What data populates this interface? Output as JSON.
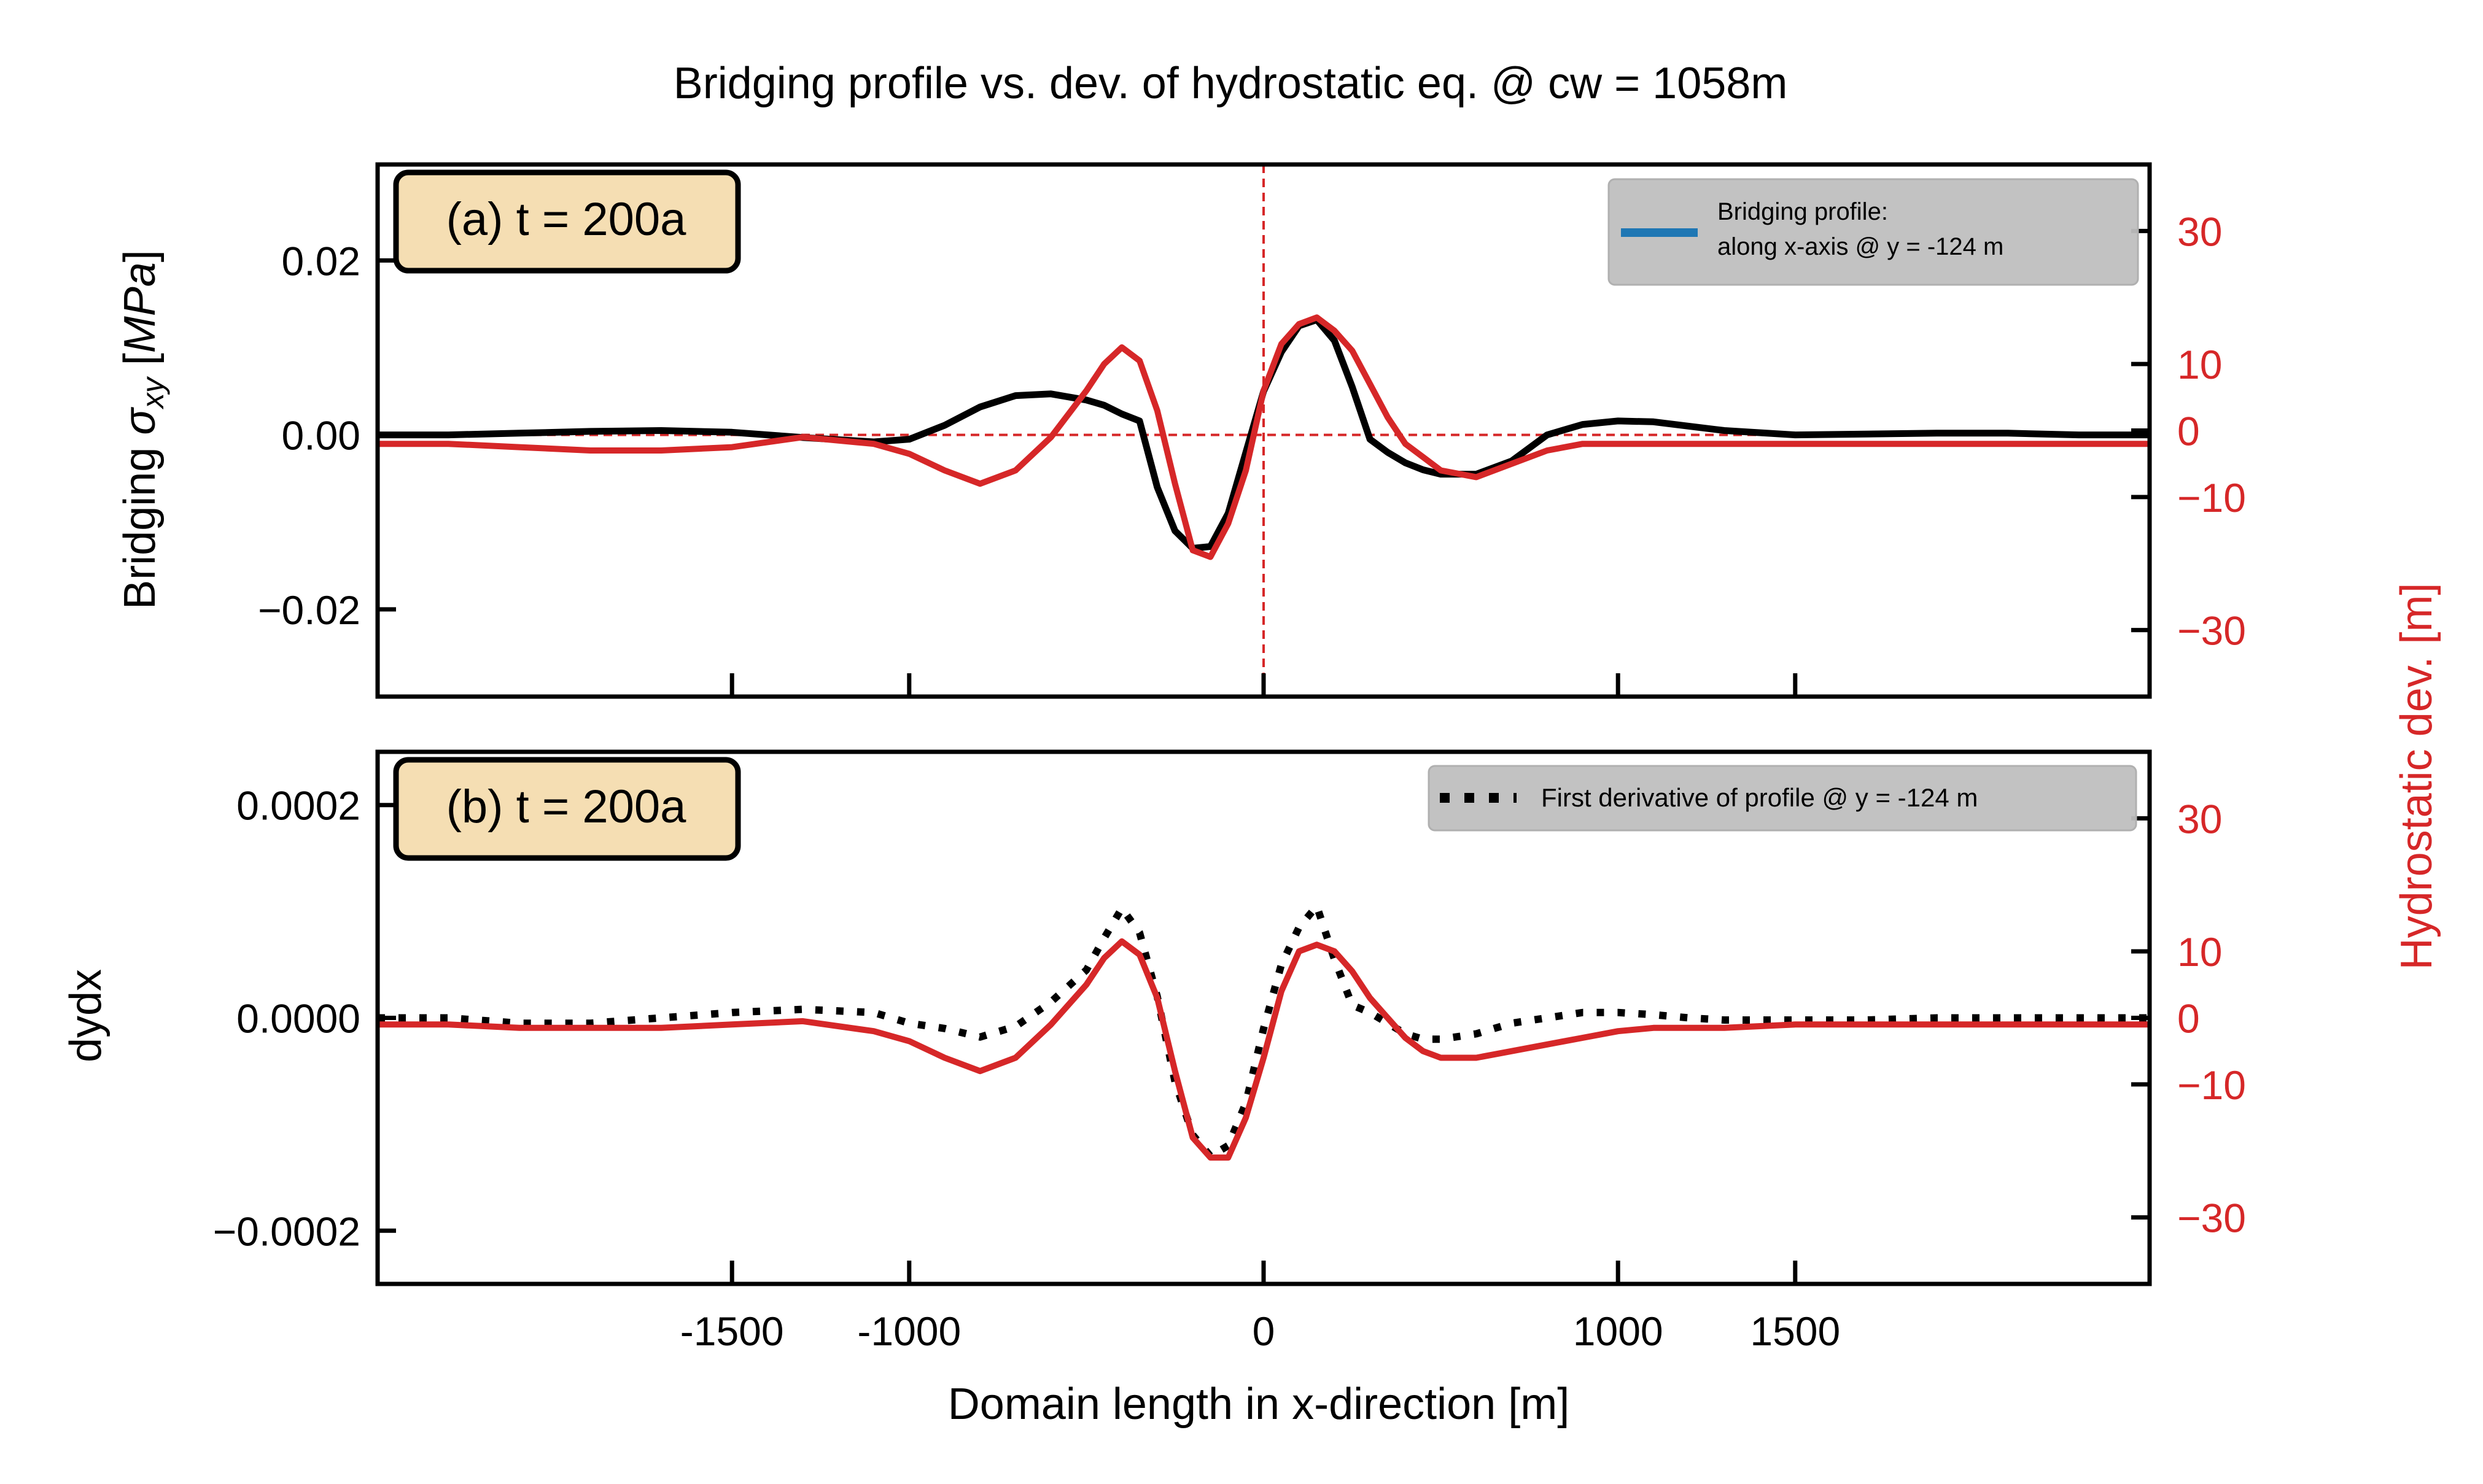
{
  "figure_title": "Bridging profile vs. dev. of hydrostatic eq. @ cw = 1058m",
  "x_axis_label": "Domain length in x-direction [m]",
  "right_axis_label": "Hydrostatic dev. [m]",
  "colors": {
    "black": "#000000",
    "red": "#d62728",
    "blue": "#1f77b4",
    "badge": "#f5deb3",
    "legend_bg": "#bfbfbf"
  },
  "chart_data": [
    {
      "type": "line",
      "panel": "(a) t = 200a",
      "xlabel": "Domain length in x-direction [m]",
      "ylabel": "Bridging σxy [MPa]",
      "ylabel_parts": {
        "pre": "Bridging ",
        "sym": "σ",
        "sub": "xy",
        "post": " [",
        "unit": "MPa",
        "end": "]"
      },
      "xlim": [
        -2500,
        2500
      ],
      "ylim": [
        -0.03,
        0.031
      ],
      "y_ticks": [
        0.02,
        0.0,
        -0.02
      ],
      "y_tick_labels": [
        "0.02",
        "0.00",
        "−0.02"
      ],
      "x_ticks": [
        -1500,
        -1000,
        0,
        1000,
        1500
      ],
      "x_tick_labels": [],
      "y2_label": "Hydrostatic dev. [m]",
      "y2lim": [
        -40,
        40
      ],
      "y2_ticks": [
        30,
        10,
        0,
        -10,
        -30
      ],
      "y2_tick_labels": [
        "30",
        "10",
        "0",
        "−10",
        "−30"
      ],
      "legend": {
        "placement": "upper right",
        "entries": [
          "Bridging profile:",
          "along x-axis @ y = -124 m"
        ]
      },
      "vline_x": 0,
      "hline_y": 0,
      "series": [
        {
          "name": "Bridging profile:\nalong x-axis @ y = -124 m",
          "axis": "left",
          "style": "solid-black",
          "x": [
            -2500,
            -2300,
            -2100,
            -1900,
            -1700,
            -1500,
            -1300,
            -1100,
            -1000,
            -900,
            -800,
            -700,
            -600,
            -500,
            -450,
            -400,
            -350,
            -300,
            -250,
            -200,
            -150,
            -100,
            -50,
            0,
            50,
            100,
            150,
            200,
            250,
            300,
            350,
            400,
            450,
            500,
            600,
            700,
            800,
            900,
            1000,
            1100,
            1200,
            1300,
            1500,
            1700,
            1900,
            2100,
            2300,
            2500
          ],
          "y": [
            0.0,
            0.0,
            0.0002,
            0.0004,
            0.0005,
            0.0003,
            -0.0003,
            -0.0008,
            -0.0005,
            0.0011,
            0.0032,
            0.0045,
            0.0047,
            0.004,
            0.0034,
            0.0024,
            0.0016,
            -0.006,
            -0.011,
            -0.013,
            -0.0128,
            -0.009,
            -0.002,
            0.005,
            0.0095,
            0.0125,
            0.0132,
            0.0108,
            0.0055,
            -0.0005,
            -0.002,
            -0.0032,
            -0.004,
            -0.0045,
            -0.0045,
            -0.003,
            0.0,
            0.0012,
            0.0016,
            0.0015,
            0.001,
            0.0005,
            0.0,
            0.0001,
            0.0002,
            0.0002,
            0.0,
            0.0
          ]
        },
        {
          "name": "",
          "axis": "right",
          "style": "solid-red",
          "x": [
            -2500,
            -2300,
            -2100,
            -1900,
            -1700,
            -1500,
            -1300,
            -1100,
            -1000,
            -900,
            -800,
            -700,
            -600,
            -500,
            -450,
            -400,
            -350,
            -300,
            -250,
            -200,
            -150,
            -100,
            -50,
            0,
            50,
            100,
            150,
            200,
            250,
            300,
            350,
            400,
            450,
            500,
            600,
            700,
            800,
            900,
            1000,
            1100,
            1200,
            1300,
            1500,
            1700,
            1900,
            2100,
            2300,
            2500
          ],
          "y": [
            -2,
            -2,
            -2.5,
            -3,
            -3,
            -2.5,
            -1,
            -2,
            -3.5,
            -6,
            -8,
            -6,
            -1,
            6,
            10,
            12.5,
            10.5,
            3,
            -8,
            -18,
            -19,
            -14,
            -6,
            6,
            13,
            16,
            17,
            15,
            12,
            7,
            2,
            -2,
            -4,
            -6,
            -7,
            -5,
            -3,
            -2,
            -2,
            -2,
            -2,
            -2,
            -2,
            -2,
            -2,
            -2,
            -2,
            -2
          ]
        }
      ]
    },
    {
      "type": "line",
      "panel": "(b) t = 200a",
      "xlabel": "Domain length in x-direction [m]",
      "ylabel": "dydx",
      "xlim": [
        -2500,
        2500
      ],
      "ylim": [
        -0.00025,
        0.00025
      ],
      "y_ticks": [
        0.0002,
        0.0,
        -0.0002
      ],
      "y_tick_labels": [
        "0.0002",
        "0.0000",
        "−0.0002"
      ],
      "x_ticks": [
        -1500,
        -1000,
        0,
        1000,
        1500
      ],
      "x_tick_labels": [
        "-1500",
        "-1000",
        "0",
        "1000",
        "1500"
      ],
      "y2_label": "Hydrostatic dev. [m]",
      "y2lim": [
        -40,
        40
      ],
      "y2_ticks": [
        30,
        10,
        0,
        -10,
        -30
      ],
      "y2_tick_labels": [
        "30",
        "10",
        "0",
        "−10",
        "−30"
      ],
      "legend": {
        "placement": "upper right",
        "entries": [
          "First derivative of profile @ y = -124 m"
        ]
      },
      "series": [
        {
          "name": "First derivative of profile @ y = -124 m",
          "axis": "left",
          "style": "dotted-black",
          "x": [
            -2500,
            -2300,
            -2100,
            -1900,
            -1700,
            -1500,
            -1300,
            -1100,
            -1000,
            -900,
            -800,
            -700,
            -600,
            -500,
            -450,
            -400,
            -350,
            -300,
            -250,
            -200,
            -150,
            -100,
            -50,
            0,
            50,
            100,
            150,
            200,
            250,
            300,
            350,
            400,
            450,
            500,
            600,
            700,
            800,
            900,
            1000,
            1100,
            1200,
            1300,
            1500,
            1700,
            1900,
            2100,
            2300,
            2500
          ],
          "y": [
            0.0,
            0.0,
            -5e-06,
            -5e-06,
            0.0,
            5e-06,
            8e-06,
            5e-06,
            -5e-06,
            -1e-05,
            -1.8e-05,
            -8e-06,
            1.5e-05,
            4.5e-05,
            7.5e-05,
            0.000103,
            8e-05,
            2e-05,
            -6e-05,
            -0.00011,
            -0.00013,
            -0.00012,
            -8e-05,
            -1e-05,
            5e-05,
            8.5e-05,
            0.000105,
            5.5e-05,
            1.2e-05,
            5e-06,
            -5e-06,
            -1.5e-05,
            -2e-05,
            -2e-05,
            -1.5e-05,
            -5e-06,
            0.0,
            5e-06,
            5e-06,
            3e-06,
            0.0,
            -2e-06,
            -2e-06,
            -2e-06,
            0.0,
            0.0,
            0.0,
            0.0
          ]
        },
        {
          "name": "",
          "axis": "right",
          "style": "solid-red",
          "x": [
            -2500,
            -2300,
            -2100,
            -1900,
            -1700,
            -1500,
            -1300,
            -1100,
            -1000,
            -900,
            -800,
            -700,
            -600,
            -500,
            -450,
            -400,
            -350,
            -300,
            -250,
            -200,
            -150,
            -100,
            -50,
            0,
            50,
            100,
            150,
            200,
            250,
            300,
            350,
            400,
            450,
            500,
            600,
            700,
            800,
            900,
            1000,
            1100,
            1200,
            1300,
            1500,
            1700,
            1900,
            2100,
            2300,
            2500
          ],
          "y": [
            -1,
            -1,
            -1.5,
            -1.5,
            -1.5,
            -1,
            -0.5,
            -2,
            -3.5,
            -6,
            -8,
            -6,
            -1,
            5,
            9,
            11.5,
            9.5,
            3,
            -8,
            -18,
            -21,
            -21,
            -15,
            -6,
            4,
            10,
            11,
            10,
            7,
            3,
            0,
            -3,
            -5,
            -6,
            -6,
            -5,
            -4,
            -3,
            -2,
            -1.5,
            -1.5,
            -1.5,
            -1,
            -1,
            -1,
            -1,
            -1,
            -1
          ]
        }
      ]
    }
  ]
}
